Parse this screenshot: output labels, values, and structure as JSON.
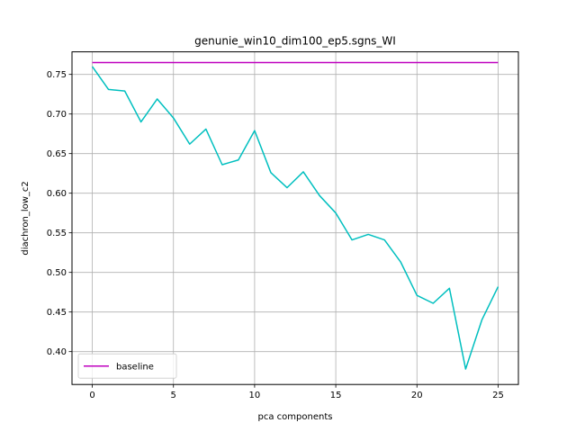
{
  "chart_data": {
    "type": "line",
    "title": "genunie_win10_dim100_ep5.sgns_WI",
    "xlabel": "pca components",
    "ylabel": "diachron_low_c2",
    "xlim": [
      -1.25,
      26.25
    ],
    "ylim": [
      0.3585,
      0.7785
    ],
    "xticks": [
      0,
      5,
      10,
      15,
      20,
      25
    ],
    "yticks": [
      0.4,
      0.45,
      0.5,
      0.55,
      0.6,
      0.65,
      0.7,
      0.75
    ],
    "ytick_labels": [
      "0.40",
      "0.45",
      "0.50",
      "0.55",
      "0.60",
      "0.65",
      "0.70",
      "0.75"
    ],
    "grid": true,
    "legend": {
      "placement": "lower-left",
      "entries": [
        "baseline"
      ]
    },
    "series": [
      {
        "name": "",
        "color": "#00bfbf",
        "x": [
          0,
          1,
          2,
          3,
          4,
          5,
          6,
          7,
          8,
          9,
          10,
          11,
          12,
          13,
          14,
          15,
          16,
          17,
          18,
          19,
          20,
          21,
          22,
          23,
          24,
          25
        ],
        "values": [
          0.76,
          0.731,
          0.729,
          0.69,
          0.719,
          0.695,
          0.662,
          0.681,
          0.636,
          0.642,
          0.679,
          0.626,
          0.607,
          0.627,
          0.597,
          0.575,
          0.541,
          0.548,
          0.541,
          0.513,
          0.471,
          0.461,
          0.48,
          0.378,
          0.44,
          0.482
        ]
      },
      {
        "name": "baseline",
        "color": "#bf00bf",
        "x": [
          0,
          25
        ],
        "values": [
          0.765,
          0.765
        ]
      }
    ]
  }
}
